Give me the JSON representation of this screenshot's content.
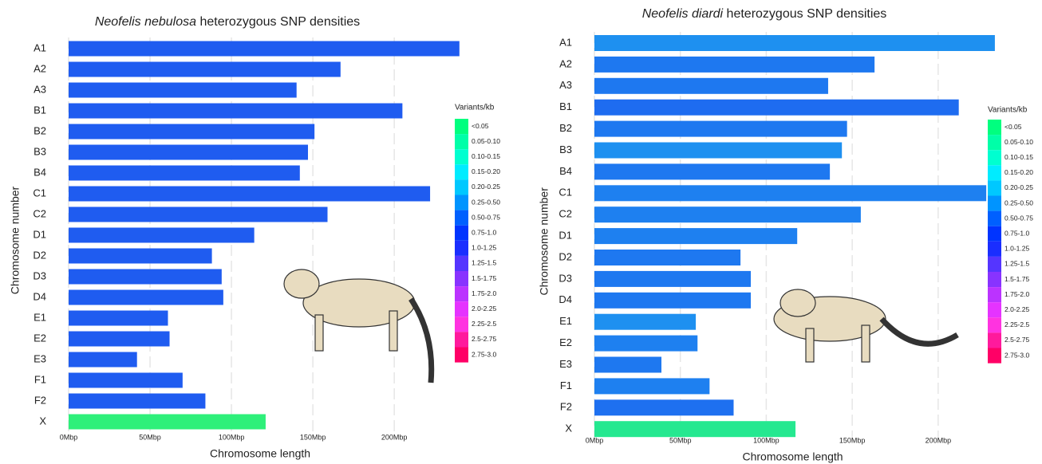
{
  "chart_data": [
    {
      "type": "bar",
      "orientation": "horizontal",
      "title": {
        "species": "Neofelis nebulosa",
        "rest": " heterozygous SNP densities"
      },
      "xlabel": "Chromosome length",
      "ylabel": "Chromosome number",
      "categories": [
        "A1",
        "A2",
        "A3",
        "B1",
        "B2",
        "B3",
        "B4",
        "C1",
        "C2",
        "D1",
        "D2",
        "D3",
        "D4",
        "E1",
        "E2",
        "E3",
        "F1",
        "F2",
        "X"
      ],
      "values": [
        240,
        167,
        140,
        205,
        151,
        147,
        142,
        222,
        159,
        114,
        88,
        94,
        95,
        61,
        62,
        42,
        70,
        84,
        121
      ],
      "colors": [
        "#1f5cf0",
        "#1f5cf0",
        "#1f5cf0",
        "#1f5cf0",
        "#1f5cf0",
        "#1f5cf0",
        "#1f5cf0",
        "#1f5cf0",
        "#1f5cf0",
        "#1f5cf0",
        "#1f5cf0",
        "#1f5cf0",
        "#1f5cf0",
        "#1f5cf0",
        "#1f5cf0",
        "#1f5cf0",
        "#1f5cf0",
        "#1f5cf0",
        "#2ef07a"
      ],
      "xlim": [
        0,
        245
      ],
      "xticks": [
        {
          "value": 0,
          "label": "0Mbp"
        },
        {
          "value": 50,
          "label": "50Mbp"
        },
        {
          "value": 100,
          "label": "100Mbp"
        },
        {
          "value": 150,
          "label": "150Mbp"
        },
        {
          "value": 200,
          "label": "200Mbp"
        }
      ],
      "grid": true,
      "legend": {
        "title": "Variants/kb",
        "labels": [
          "<0.05",
          "0.05-0.10",
          "0.10-0.15",
          "0.15-0.20",
          "0.20-0.25",
          "0.25-0.50",
          "0.50-0.75",
          "0.75-1.0",
          "1.0-1.25",
          "1.25-1.5",
          "1.5-1.75",
          "1.75-2.0",
          "2.0-2.25",
          "2.25-2.5",
          "2.5-2.75",
          "2.75-3.0"
        ],
        "colors": [
          "#00ff7f",
          "#00ffa8",
          "#00ffd0",
          "#00ecff",
          "#00c8ff",
          "#0094ff",
          "#0060ff",
          "#0034ff",
          "#1a2eff",
          "#5535ff",
          "#8833ff",
          "#bb33ff",
          "#e533ff",
          "#ff33e0",
          "#ff1a9c",
          "#ff0066"
        ]
      }
    },
    {
      "type": "bar",
      "orientation": "horizontal",
      "title": {
        "species": "Neofelis diardi",
        "rest": " heterozygous SNP densities"
      },
      "xlabel": "Chromosome length",
      "ylabel": "Chromosome number",
      "categories": [
        "A1",
        "A2",
        "A3",
        "B1",
        "B2",
        "B3",
        "B4",
        "C1",
        "C2",
        "D1",
        "D2",
        "D3",
        "D4",
        "E1",
        "E2",
        "E3",
        "F1",
        "F2",
        "X"
      ],
      "values": [
        233,
        163,
        136,
        212,
        147,
        144,
        137,
        228,
        155,
        118,
        85,
        91,
        91,
        59,
        60,
        39,
        67,
        81,
        117
      ],
      "colors": [
        "#1e90f0",
        "#1e78f0",
        "#1e78f0",
        "#1e6cf0",
        "#1e78f0",
        "#1e90f0",
        "#1e78f0",
        "#1e80f0",
        "#1e80f0",
        "#1e80f0",
        "#1e78f0",
        "#1e78f0",
        "#1e78f0",
        "#1e90f0",
        "#1e80f0",
        "#1e78f0",
        "#1e80f0",
        "#1e70f0",
        "#25e890"
      ],
      "xlim": [
        0,
        240
      ],
      "xticks": [
        {
          "value": 0,
          "label": "0Mbp"
        },
        {
          "value": 50,
          "label": "50Mbp"
        },
        {
          "value": 100,
          "label": "100Mbp"
        },
        {
          "value": 150,
          "label": "150Mbp"
        },
        {
          "value": 200,
          "label": "200Mbp"
        }
      ],
      "grid": true,
      "legend": {
        "title": "Variants/kb",
        "labels": [
          "<0.05",
          "0.05-0.10",
          "0.10-0.15",
          "0.15-0.20",
          "0.20-0.25",
          "0.25-0.50",
          "0.50-0.75",
          "0.75-1.0",
          "1.0-1.25",
          "1.25-1.5",
          "1.5-1.75",
          "1.75-2.0",
          "2.0-2.25",
          "2.25-2.5",
          "2.5-2.75",
          "2.75-3.0"
        ],
        "colors": [
          "#00ff7f",
          "#00ffa8",
          "#00ffd0",
          "#00ecff",
          "#00c8ff",
          "#0094ff",
          "#0060ff",
          "#0034ff",
          "#1a2eff",
          "#5535ff",
          "#8833ff",
          "#bb33ff",
          "#e533ff",
          "#ff33e0",
          "#ff1a9c",
          "#ff0066"
        ]
      }
    }
  ]
}
